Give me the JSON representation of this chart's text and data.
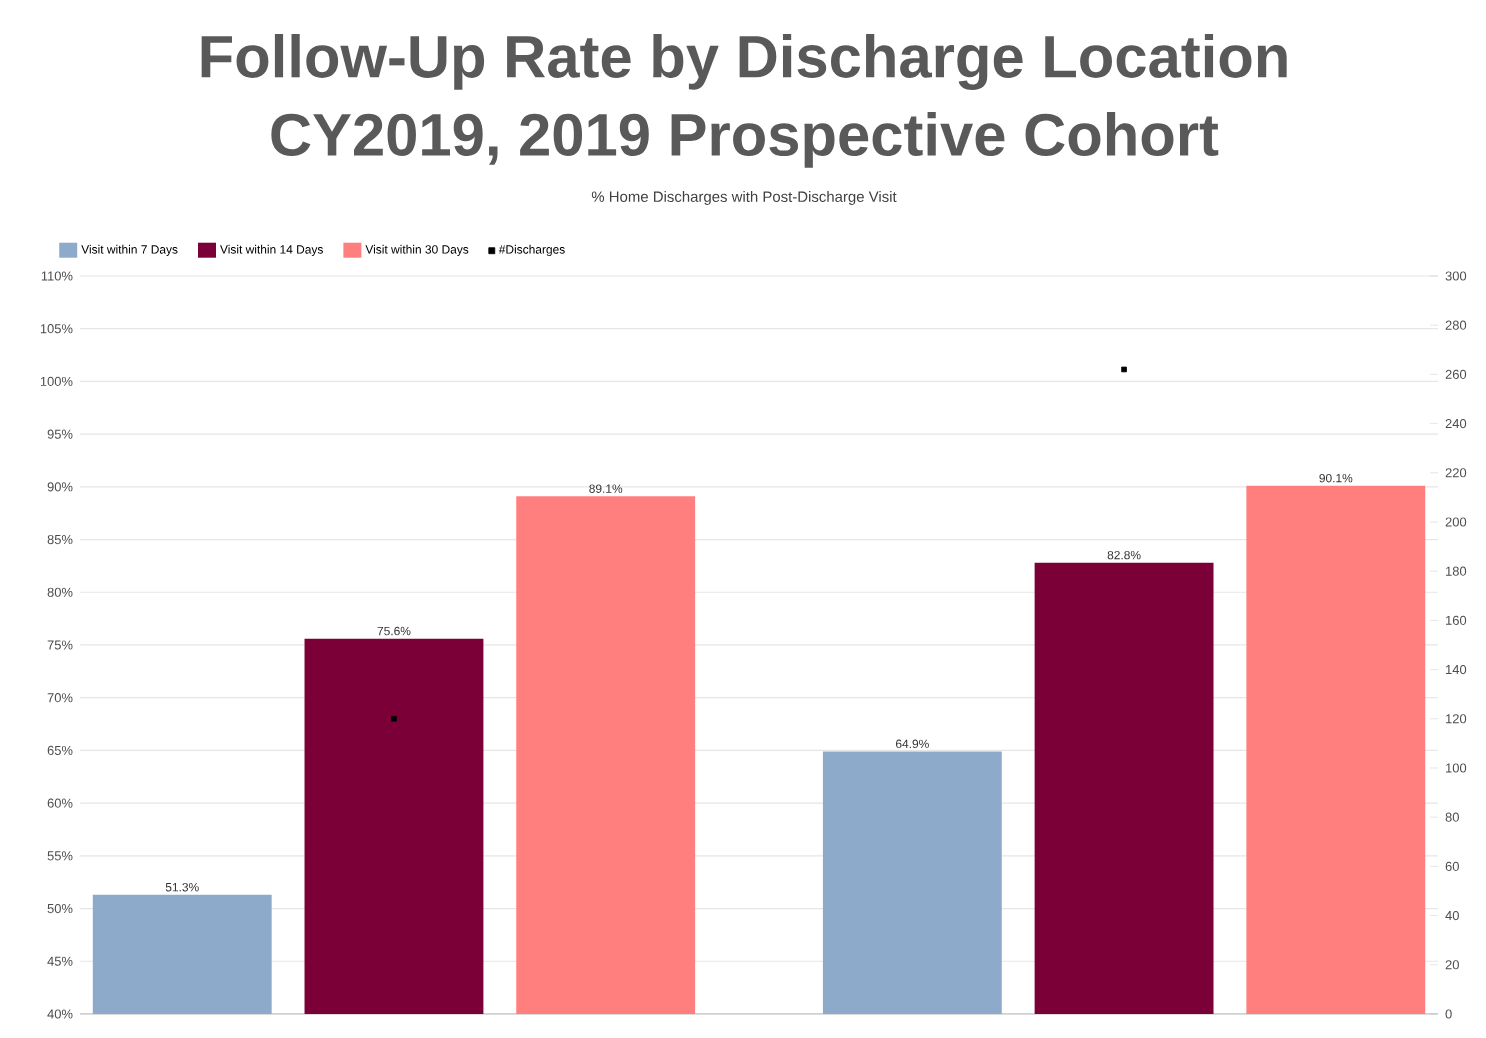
{
  "chart_data": {
    "type": "bar",
    "title": "Follow-Up Rate by Discharge Location",
    "subtitle": "CY2019, 2019 Prospective Cohort",
    "annotations": [
      "% Home Discharges with Post-Discharge Visit"
    ],
    "categories": [
      null,
      null
    ],
    "series": [
      {
        "name": "Visit within 7 Days",
        "color": "#8eaacb",
        "values": [
          51.3,
          64.9
        ],
        "value_labels": [
          "51.3%",
          "64.9%"
        ]
      },
      {
        "name": "Visit within 14 Days",
        "color": "#7b0038",
        "values": [
          75.6,
          82.8
        ],
        "value_labels": [
          "75.6%",
          "82.8%"
        ]
      },
      {
        "name": "Visit within 30 Days",
        "color": "#ff7f7f",
        "values": [
          89.1,
          90.1
        ],
        "value_labels": [
          "89.1%",
          "90.1%"
        ]
      },
      {
        "name": "#Discharges",
        "color": "#000000",
        "type": "scatter",
        "axis": "y2",
        "values": [
          120,
          262
        ]
      }
    ],
    "ylim": [
      40,
      110
    ],
    "yticks": [
      {
        "value": 40,
        "label": "40%"
      },
      {
        "value": 45,
        "label": "45%"
      },
      {
        "value": 50,
        "label": "50%"
      },
      {
        "value": 55,
        "label": "55%"
      },
      {
        "value": 60,
        "label": "60%"
      },
      {
        "value": 65,
        "label": "65%"
      },
      {
        "value": 70,
        "label": "70%"
      },
      {
        "value": 75,
        "label": "75%"
      },
      {
        "value": 80,
        "label": "80%"
      },
      {
        "value": 85,
        "label": "85%"
      },
      {
        "value": 90,
        "label": "90%"
      },
      {
        "value": 95,
        "label": "95%"
      },
      {
        "value": 100,
        "label": "100%"
      },
      {
        "value": 105,
        "label": "105%"
      },
      {
        "value": 110,
        "label": "110%"
      }
    ],
    "y2lim": [
      0,
      300
    ],
    "y2ticks": [
      0,
      20,
      40,
      60,
      80,
      100,
      120,
      140,
      160,
      180,
      200,
      220,
      240,
      260,
      280,
      300
    ],
    "grid": "y",
    "legend": "top left",
    "marker": "square"
  }
}
